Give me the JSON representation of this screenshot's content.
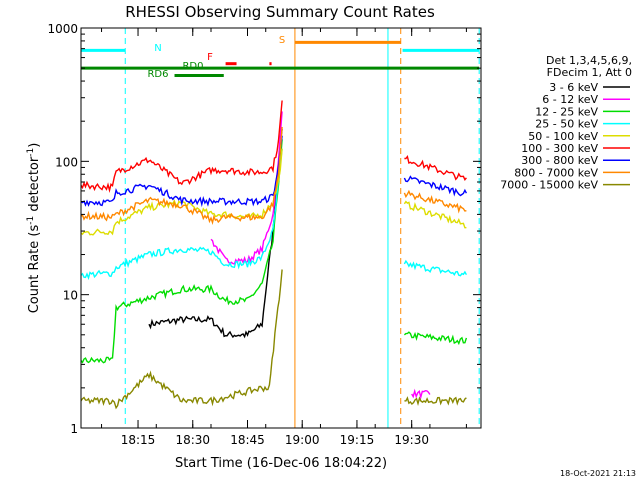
{
  "chart_data": {
    "type": "line",
    "title": "RHESSI Observing Summary Count Rates",
    "xlabel": "Start Time (16-Dec-06 18:04:22)",
    "ylabel_main": "Count Rate (s",
    "ylabel_sup": "-1",
    "ylabel_mid": " detector",
    "ylabel_end": ")",
    "xlim_min": [
      4.37,
      114
    ],
    "ylim": [
      1,
      1000
    ],
    "y_scale": "log",
    "x_ticks": [
      {
        "v": 20,
        "label": "18:15"
      },
      {
        "v": 35,
        "label": "18:30"
      },
      {
        "v": 50,
        "label": "18:45"
      },
      {
        "v": 65,
        "label": "19:00"
      },
      {
        "v": 80,
        "label": "19:15"
      },
      {
        "v": 95,
        "label": "19:30"
      }
    ],
    "y_ticks": [
      {
        "v": 1,
        "label": "1"
      },
      {
        "v": 10,
        "label": "10"
      },
      {
        "v": 100,
        "label": "100"
      },
      {
        "v": 1000,
        "label": "1000"
      }
    ],
    "timestamp": "18-Oct-2021 21:13",
    "legend": {
      "position": "right",
      "header": [
        "Det 1,3,4,5,6,9,",
        "FDecim 1, Att 0"
      ]
    },
    "series": [
      {
        "name": "3 - 6 keV",
        "color": "#000000",
        "points": [
          [
            13,
            null
          ],
          [
            23,
            6
          ],
          [
            32,
            6.5
          ],
          [
            40,
            6.5
          ],
          [
            44,
            5
          ],
          [
            50,
            5
          ],
          [
            54,
            6
          ],
          [
            55.5,
            14
          ],
          [
            57,
            30
          ],
          [
            58.5,
            95
          ],
          [
            59.5,
            180
          ]
        ]
      },
      {
        "name": "6 - 12 keV",
        "color": "#ff00ff",
        "points": [
          [
            13,
            null
          ],
          [
            40,
            26
          ],
          [
            44,
            18
          ],
          [
            50,
            18
          ],
          [
            54,
            22
          ],
          [
            57,
            40
          ],
          [
            58.5,
            100
          ],
          [
            59.5,
            250
          ],
          [
            92,
            null
          ],
          [
            95,
            1.8
          ],
          [
            100,
            1.8
          ]
        ]
      },
      {
        "name": "12 - 25 keV",
        "color": "#00dd00",
        "points": [
          [
            4.37,
            3.2
          ],
          [
            13,
            3.2
          ],
          [
            14,
            8
          ],
          [
            23,
            9.5
          ],
          [
            32,
            11
          ],
          [
            40,
            11
          ],
          [
            44,
            9
          ],
          [
            50,
            9
          ],
          [
            54,
            12
          ],
          [
            57,
            25
          ],
          [
            58.5,
            70
          ],
          [
            59.5,
            140
          ],
          [
            92,
            null
          ],
          [
            93,
            5
          ],
          [
            110,
            4.5
          ]
        ]
      },
      {
        "name": "25 - 50 keV",
        "color": "#00ffff",
        "points": [
          [
            4.37,
            14
          ],
          [
            13,
            14.5
          ],
          [
            14,
            16
          ],
          [
            23,
            20
          ],
          [
            32,
            22
          ],
          [
            40,
            21
          ],
          [
            44,
            17
          ],
          [
            50,
            17
          ],
          [
            54,
            19
          ],
          [
            57,
            30
          ],
          [
            58.5,
            70
          ],
          [
            59.5,
            120
          ],
          [
            92,
            null
          ],
          [
            93,
            17
          ],
          [
            110,
            14
          ]
        ]
      },
      {
        "name": "50 - 100 keV",
        "color": "#dddd00",
        "points": [
          [
            4.37,
            29
          ],
          [
            13,
            30
          ],
          [
            14,
            35
          ],
          [
            23,
            45
          ],
          [
            32,
            49
          ],
          [
            40,
            40
          ],
          [
            44,
            40
          ],
          [
            50,
            38
          ],
          [
            54,
            40
          ],
          [
            57,
            50
          ],
          [
            58.5,
            70
          ],
          [
            59.5,
            120
          ],
          [
            92,
            null
          ],
          [
            93,
            48
          ],
          [
            110,
            33
          ]
        ]
      },
      {
        "name": "100 - 300 keV",
        "color": "#ff0000",
        "points": [
          [
            4.37,
            66
          ],
          [
            13,
            64
          ],
          [
            14,
            83
          ],
          [
            23,
            103
          ],
          [
            32,
            68
          ],
          [
            40,
            86
          ],
          [
            44,
            86
          ],
          [
            50,
            83
          ],
          [
            54,
            83
          ],
          [
            57,
            90
          ],
          [
            58.5,
            140
          ],
          [
            59.5,
            280
          ],
          [
            92,
            null
          ],
          [
            93,
            105
          ],
          [
            110,
            73
          ]
        ]
      },
      {
        "name": "300 - 800 keV",
        "color": "#0000ff",
        "points": [
          [
            4.37,
            50
          ],
          [
            13,
            49
          ],
          [
            14,
            58
          ],
          [
            23,
            66
          ],
          [
            32,
            51
          ],
          [
            40,
            50
          ],
          [
            44,
            50
          ],
          [
            50,
            50
          ],
          [
            54,
            50
          ],
          [
            57,
            55
          ],
          [
            58.5,
            90
          ],
          [
            59.5,
            160
          ],
          [
            92,
            null
          ],
          [
            93,
            75
          ],
          [
            110,
            57
          ]
        ]
      },
      {
        "name": "800 - 7000 keV",
        "color": "#ff8800",
        "points": [
          [
            4.37,
            39
          ],
          [
            13,
            38
          ],
          [
            14,
            40
          ],
          [
            23,
            51
          ],
          [
            32,
            47
          ],
          [
            40,
            36
          ],
          [
            44,
            38
          ],
          [
            50,
            38
          ],
          [
            54,
            38
          ],
          [
            57,
            48
          ],
          [
            58.5,
            80
          ],
          [
            59.5,
            180
          ],
          [
            92,
            null
          ],
          [
            93,
            58
          ],
          [
            110,
            43
          ]
        ]
      },
      {
        "name": "7000 - 15000 keV",
        "color": "#888800",
        "points": [
          [
            4.37,
            1.6
          ],
          [
            13,
            1.6
          ],
          [
            14,
            1.5
          ],
          [
            23,
            2.5
          ],
          [
            32,
            1.6
          ],
          [
            40,
            1.6
          ],
          [
            54,
            2
          ],
          [
            56,
            2
          ],
          [
            57.5,
            5
          ],
          [
            59.5,
            15
          ],
          [
            92,
            null
          ],
          [
            93,
            1.6
          ],
          [
            110,
            1.6
          ]
        ]
      }
    ],
    "state_bars": [
      {
        "label": "N",
        "color": "#00ffff",
        "y": 680,
        "segments": [
          [
            4.37,
            16.5
          ],
          [
            92.5,
            113.5
          ]
        ]
      },
      {
        "label": "S",
        "color": "#ff8800",
        "y": 780,
        "segments": [
          [
            63,
            92
          ]
        ]
      },
      {
        "label": "F",
        "color": "#ff0000",
        "y": 540,
        "segments": [
          [
            44,
            47
          ],
          [
            56,
            56.6
          ]
        ]
      },
      {
        "label": "RD0",
        "color": "#008800",
        "y": 500,
        "segments": [
          [
            4.37,
            113.5
          ]
        ]
      },
      {
        "label": "RD6",
        "color": "#008800",
        "y": 440,
        "segments": [
          [
            30,
            43.5
          ]
        ]
      }
    ],
    "vlines": [
      {
        "x": 16.5,
        "color": "#00ffff",
        "dash": true
      },
      {
        "x": 63,
        "color": "#ff8800",
        "dash": false
      },
      {
        "x": 88.5,
        "color": "#00ffff",
        "dash": false
      },
      {
        "x": 92,
        "color": "#ff8800",
        "dash": true
      },
      {
        "x": 113.5,
        "color": "#00ffff",
        "dash": true
      }
    ]
  }
}
